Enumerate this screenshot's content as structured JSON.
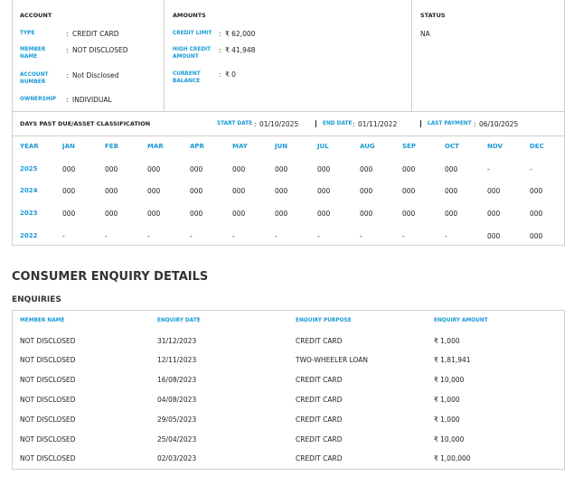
{
  "separator": ":",
  "account": {
    "title": "ACCOUNT",
    "fields": [
      {
        "label": "TYPE",
        "value": "CREDIT CARD"
      },
      {
        "label": "MEMBER NAME",
        "value": "NOT DISCLOSED"
      },
      {
        "label": "ACCOUNT NUMBER",
        "value": "Not Disclosed"
      },
      {
        "label": "OWNERSHIP",
        "value": "INDIVIDUAL"
      }
    ]
  },
  "amounts": {
    "title": "AMOUNTS",
    "fields": [
      {
        "label": "CREDIT LIMIT",
        "value": "₹ 62,000"
      },
      {
        "label": "HIGH CREDIT AMOUNT",
        "value": "₹ 41,948"
      },
      {
        "label": "CURRENT BALANCE",
        "value": "₹ 0"
      }
    ]
  },
  "status": {
    "title": "STATUS",
    "value": "NA"
  },
  "dpd": {
    "title": "DAYS PAST DUE/ASSET CLASSIFICATION",
    "start_date": {
      "label": "START DATE",
      "value": "01/10/2025"
    },
    "end_date": {
      "label": "END DATE",
      "value": "01/11/2022"
    },
    "last_payment": {
      "label": "LAST PAYMENT",
      "value": "06/10/2025"
    },
    "header": [
      "YEAR",
      "JAN",
      "FEB",
      "MAR",
      "APR",
      "MAY",
      "JUN",
      "JUL",
      "AUG",
      "SEP",
      "OCT",
      "NOV",
      "DEC"
    ],
    "rows": [
      [
        "2025",
        "000",
        "000",
        "000",
        "000",
        "000",
        "000",
        "000",
        "000",
        "000",
        "000",
        "-",
        "-"
      ],
      [
        "2024",
        "000",
        "000",
        "000",
        "000",
        "000",
        "000",
        "000",
        "000",
        "000",
        "000",
        "000",
        "000"
      ],
      [
        "2023",
        "000",
        "000",
        "000",
        "000",
        "000",
        "000",
        "000",
        "000",
        "000",
        "000",
        "000",
        "000"
      ],
      [
        "2022",
        "-",
        "-",
        "-",
        "-",
        "-",
        "-",
        "-",
        "-",
        "-",
        "-",
        "000",
        "000"
      ]
    ]
  },
  "enquiry": {
    "title": "CONSUMER ENQUIRY DETAILS",
    "subtitle": "ENQUIRIES",
    "header": [
      "MEMBER NAME",
      "ENQUIRY DATE",
      "ENQUIRY PURPOSE",
      "ENQUIRY AMOUNT"
    ],
    "rows": [
      [
        "NOT DISCLOSED",
        "31/12/2023",
        "CREDIT CARD",
        "₹ 1,000"
      ],
      [
        "NOT DISCLOSED",
        "12/11/2023",
        "TWO-WHEELER LOAN",
        "₹ 1,81,941"
      ],
      [
        "NOT DISCLOSED",
        "16/08/2023",
        "CREDIT CARD",
        "₹ 10,000"
      ],
      [
        "NOT DISCLOSED",
        "04/08/2023",
        "CREDIT CARD",
        "₹ 1,000"
      ],
      [
        "NOT DISCLOSED",
        "29/05/2023",
        "CREDIT CARD",
        "₹ 1,000"
      ],
      [
        "NOT DISCLOSED",
        "25/04/2023",
        "CREDIT CARD",
        "₹ 10,000"
      ],
      [
        "NOT DISCLOSED",
        "02/03/2023",
        "CREDIT CARD",
        "₹ 1,00,000"
      ]
    ]
  }
}
